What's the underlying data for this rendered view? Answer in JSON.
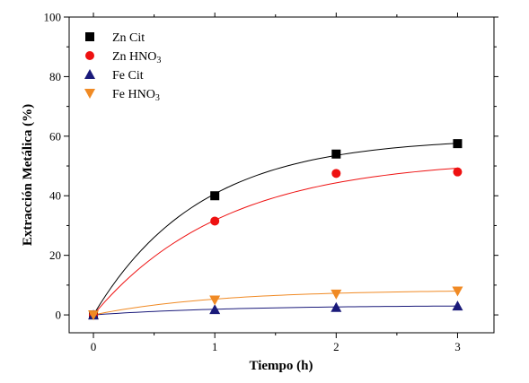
{
  "chart_data": {
    "type": "scatter",
    "title": "",
    "xlabel": "Tiempo (h)",
    "ylabel": "Extracción Metálica (%)",
    "xlim": [
      -0.2,
      3.3
    ],
    "ylim": [
      -6,
      100
    ],
    "x_ticks": [
      0,
      1,
      2,
      3
    ],
    "y_ticks": [
      0,
      20,
      40,
      60,
      80,
      100
    ],
    "grid": false,
    "legend_position": "top-left",
    "series": [
      {
        "name_main": "Zn Cit",
        "name_sub": "",
        "marker": "square",
        "color": "#000000",
        "fit_color": "#000000",
        "x": [
          0,
          1,
          2,
          3
        ],
        "y": [
          0,
          40,
          54,
          57.5
        ],
        "fit": {
          "a": 59.5,
          "k": 1.15
        }
      },
      {
        "name_main": "Zn HNO",
        "name_sub": "3",
        "marker": "circle",
        "color": "#ee1111",
        "fit_color": "#ee1111",
        "x": [
          0,
          1,
          2,
          3
        ],
        "y": [
          0,
          31.5,
          47.5,
          48
        ],
        "fit": {
          "a": 52.5,
          "k": 0.93
        }
      },
      {
        "name_main": "Fe Cit",
        "name_sub": "",
        "marker": "triangle-up",
        "color": "#1a1a7a",
        "fit_color": "#1a1a7a",
        "x": [
          0,
          1,
          2,
          3
        ],
        "y": [
          0,
          1.8,
          2.5,
          3
        ],
        "fit": {
          "a": 3.2,
          "k": 0.9
        }
      },
      {
        "name_main": "Fe HNO",
        "name_sub": "3",
        "marker": "triangle-down",
        "color": "#f08a24",
        "fit_color": "#f08a24",
        "x": [
          0,
          1,
          2,
          3
        ],
        "y": [
          0,
          5,
          7,
          8
        ],
        "fit": {
          "a": 8.4,
          "k": 1.0
        }
      }
    ]
  }
}
